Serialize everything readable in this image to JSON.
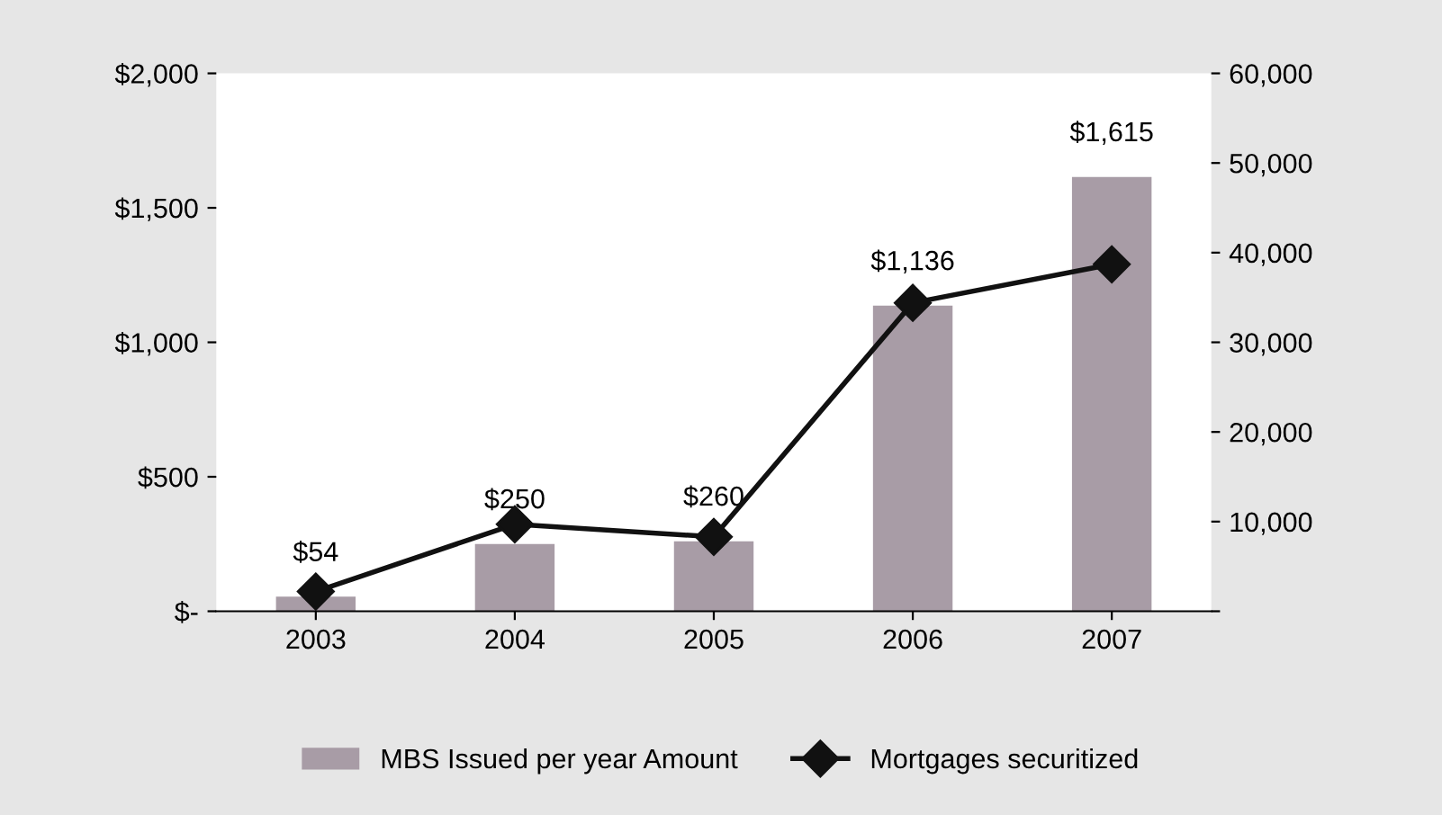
{
  "chart_data": {
    "type": "bar",
    "categories": [
      "2003",
      "2004",
      "2005",
      "2006",
      "2007"
    ],
    "series": [
      {
        "name": "MBS Issued per year Amount",
        "color": "#a89ca6",
        "values": [
          54,
          250,
          260,
          1136,
          1615
        ],
        "value_labels": [
          "$54",
          "$250",
          "$260",
          "$1,136",
          "$1,615"
        ]
      },
      {
        "name": "Mortgages securitized",
        "type": "line",
        "axis": "y2",
        "color": "#111111",
        "values": [
          2200,
          9700,
          8300,
          34400,
          38700
        ]
      }
    ],
    "ylim": [
      0,
      2000
    ],
    "yticks": [
      {
        "value": 0,
        "label": "$-"
      },
      {
        "value": 500,
        "label": "$500"
      },
      {
        "value": 1000,
        "label": "$1,000"
      },
      {
        "value": 1500,
        "label": "$1,500"
      },
      {
        "value": 2000,
        "label": "$2,000"
      }
    ],
    "y2lim": [
      0,
      60000
    ],
    "y2ticks": [
      {
        "value": 0,
        "label": null
      },
      {
        "value": 10000,
        "label": "10,000"
      },
      {
        "value": 20000,
        "label": "20,000"
      },
      {
        "value": 30000,
        "label": "30,000"
      },
      {
        "value": 40000,
        "label": "40,000"
      },
      {
        "value": 50000,
        "label": "50,000"
      },
      {
        "value": 60000,
        "label": "60,000"
      }
    ],
    "marker": "diamond",
    "line_style": "solid",
    "grid": false,
    "legend": "bottom"
  }
}
